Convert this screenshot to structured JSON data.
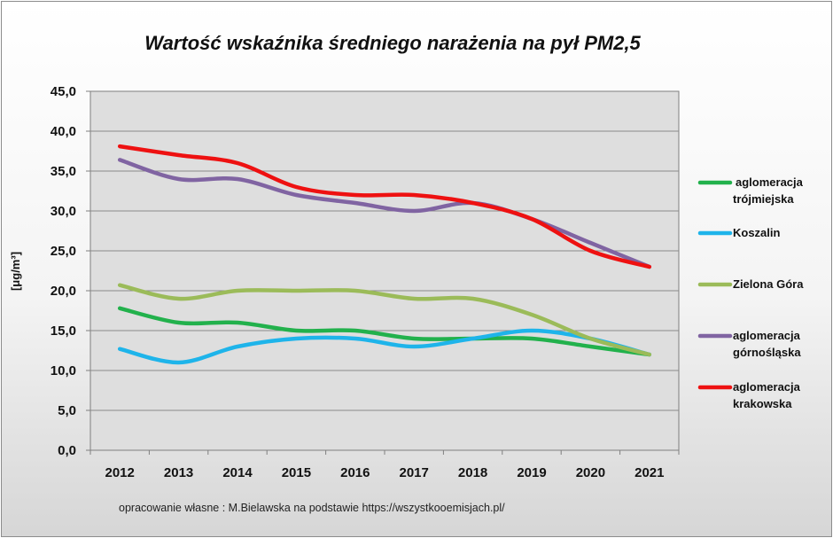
{
  "chart_data": {
    "type": "line",
    "title": "Wartość wskaźnika średniego narażenia na pył PM2,5",
    "ylabel": "[μg/m³]",
    "xlabel": "",
    "x": [
      "2012",
      "2013",
      "2014",
      "2015",
      "2016",
      "2017",
      "2018",
      "2019",
      "2020",
      "2021"
    ],
    "ylim": [
      0,
      45
    ],
    "yticks": [
      "0,0",
      "5,0",
      "10,0",
      "15,0",
      "20,0",
      "25,0",
      "30,0",
      "35,0",
      "40,0",
      "45,0"
    ],
    "grid": true,
    "legend_position": "right",
    "series": [
      {
        "name": "aglomeracja trójmiejska",
        "legend_lines": [
          "aglomeracja",
          "trójmiejska"
        ],
        "color": "#22b14c",
        "values": [
          17.8,
          16.0,
          16.0,
          15.0,
          15.0,
          14.0,
          14.0,
          14.0,
          13.0,
          12.0
        ]
      },
      {
        "name": "Koszalin",
        "legend_lines": [
          "Koszalin"
        ],
        "color": "#1eb4ea",
        "values": [
          12.7,
          11.0,
          13.0,
          14.0,
          14.0,
          13.0,
          14.0,
          15.0,
          14.0,
          12.0
        ]
      },
      {
        "name": "Zielona Góra",
        "legend_lines": [
          "Zielona Góra"
        ],
        "color": "#9bbb59",
        "values": [
          20.7,
          19.0,
          20.0,
          20.0,
          20.0,
          19.0,
          19.0,
          17.0,
          14.0,
          12.0
        ]
      },
      {
        "name": "aglomeracja górnośląska",
        "legend_lines": [
          "aglomeracja",
          "górnośląska"
        ],
        "color": "#8064a2",
        "values": [
          36.4,
          34.0,
          34.0,
          32.0,
          31.0,
          30.0,
          31.0,
          29.0,
          26.0,
          23.0
        ]
      },
      {
        "name": "aglomeracja krakowska",
        "legend_lines": [
          "aglomeracja",
          "krakowska"
        ],
        "color": "#ee1111",
        "values": [
          38.1,
          37.0,
          36.0,
          33.0,
          32.0,
          32.0,
          31.0,
          29.0,
          25.0,
          23.0
        ]
      }
    ]
  },
  "footnote": "opracowanie  własne : M.Bielawska na podstawie https://wszystkooemisjach.pl/"
}
